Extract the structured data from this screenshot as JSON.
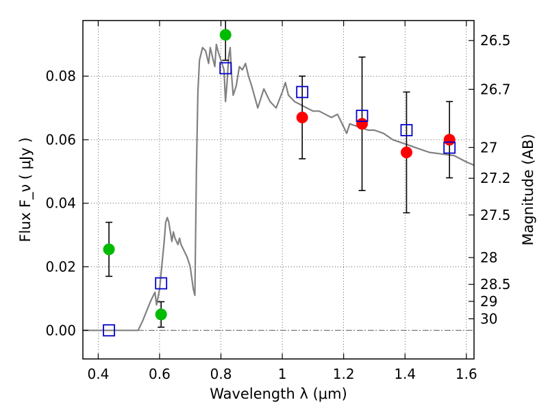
{
  "chart_data": {
    "type": "scatter",
    "title": "",
    "xlabel": "Wavelength  λ (μm)",
    "ylabel": "Flux  F_ν  ( μJy )",
    "y2label": "Magnitude (AB)",
    "xlim": [
      0.35,
      1.625
    ],
    "ylim": [
      -0.009,
      0.0975
    ],
    "x_ticks": [
      0.4,
      0.6,
      0.8,
      1.0,
      1.2,
      1.4,
      1.6
    ],
    "x_tick_labels": [
      "0.4",
      "0.6",
      "0.8",
      "1",
      "1.2",
      "1.4",
      "1.6"
    ],
    "y_ticks": [
      0.0,
      0.02,
      0.04,
      0.06,
      0.08
    ],
    "y_tick_labels": [
      "0.00",
      "0.02",
      "0.04",
      "0.06",
      "0.08"
    ],
    "y2_ticks": [
      "26.5",
      "26.7",
      "27",
      "27.2",
      "27.5",
      "28",
      "28.5",
      "29",
      "30"
    ],
    "grid": true,
    "reference_line": {
      "y": 0.0,
      "style": "dash-dot"
    },
    "colors": {
      "model": "#808080",
      "green_points": "#00bb00",
      "red_points": "#ff0000",
      "boxes": "#0000cc",
      "errorbars": "#000000"
    },
    "series": [
      {
        "marker": "line",
        "color": "#808080",
        "x": [
          0.35,
          0.45,
          0.53,
          0.545,
          0.57,
          0.585,
          0.59,
          0.6,
          0.605,
          0.615,
          0.62,
          0.625,
          0.63,
          0.64,
          0.645,
          0.65,
          0.66,
          0.665,
          0.67,
          0.68,
          0.69,
          0.7,
          0.71,
          0.715,
          0.72,
          0.725,
          0.73,
          0.74,
          0.75,
          0.76,
          0.765,
          0.77,
          0.78,
          0.785,
          0.79,
          0.8,
          0.81,
          0.815,
          0.82,
          0.825,
          0.83,
          0.835,
          0.84,
          0.85,
          0.86,
          0.87,
          0.88,
          0.89,
          0.9,
          0.92,
          0.94,
          0.96,
          0.98,
          1.0,
          1.01,
          1.02,
          1.04,
          1.06,
          1.08,
          1.1,
          1.12,
          1.14,
          1.16,
          1.18,
          1.2,
          1.21,
          1.22,
          1.25,
          1.28,
          1.3,
          1.33,
          1.36,
          1.39,
          1.42,
          1.45,
          1.48,
          1.52,
          1.56,
          1.6,
          1.625
        ],
        "y": [
          0.0,
          0.0,
          0.0,
          0.003,
          0.009,
          0.012,
          0.008,
          0.013,
          0.018,
          0.028,
          0.034,
          0.0355,
          0.034,
          0.028,
          0.031,
          0.029,
          0.027,
          0.029,
          0.027,
          0.025,
          0.023,
          0.02,
          0.013,
          0.011,
          0.05,
          0.075,
          0.085,
          0.089,
          0.088,
          0.084,
          0.089,
          0.087,
          0.083,
          0.09,
          0.088,
          0.085,
          0.082,
          0.072,
          0.078,
          0.086,
          0.089,
          0.08,
          0.074,
          0.077,
          0.083,
          0.082,
          0.084,
          0.08,
          0.077,
          0.07,
          0.076,
          0.072,
          0.07,
          0.075,
          0.078,
          0.074,
          0.072,
          0.071,
          0.07,
          0.069,
          0.069,
          0.068,
          0.067,
          0.068,
          0.064,
          0.062,
          0.065,
          0.064,
          0.063,
          0.063,
          0.062,
          0.06,
          0.059,
          0.058,
          0.057,
          0.056,
          0.0555,
          0.055,
          0.053,
          0.052
        ]
      },
      {
        "marker": "circle",
        "color": "#00bb00",
        "x": [
          0.435,
          0.605,
          0.815
        ],
        "y": [
          0.0255,
          0.005,
          0.093
        ],
        "y_err_low": [
          0.017,
          0.001,
          0.085
        ],
        "y_err_high": [
          0.034,
          0.009,
          0.1
        ]
      },
      {
        "marker": "circle",
        "color": "#ff0000",
        "x": [
          1.065,
          1.26,
          1.405,
          1.545
        ],
        "y": [
          0.067,
          0.065,
          0.056,
          0.06
        ],
        "y_err_low": [
          0.054,
          0.044,
          0.037,
          0.048
        ],
        "y_err_high": [
          0.08,
          0.086,
          0.075,
          0.072
        ]
      },
      {
        "marker": "square",
        "color": "#0000cc",
        "x": [
          0.435,
          0.605,
          0.815,
          1.065,
          1.26,
          1.405,
          1.545
        ],
        "y": [
          0.0,
          0.0148,
          0.0825,
          0.075,
          0.0675,
          0.063,
          0.0575
        ]
      }
    ]
  }
}
